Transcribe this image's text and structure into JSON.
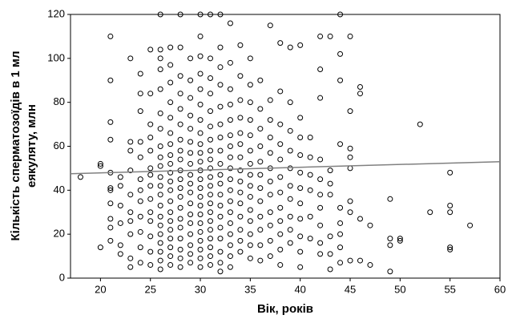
{
  "chart_data": {
    "type": "scatter",
    "ylabel": [
      "Кількість сперматозоїдів в 1 мл",
      "еякуляту, млн"
    ],
    "xlabel": "Вік, років",
    "xlim": [
      17,
      60
    ],
    "ylim": [
      0,
      120
    ],
    "xticks": [
      20,
      25,
      30,
      35,
      40,
      45,
      50,
      55,
      60
    ],
    "yticks": [
      0,
      20,
      40,
      60,
      80,
      100,
      120
    ],
    "color": "#000000",
    "trend": {
      "x": [
        17,
        60
      ],
      "y": [
        47.5,
        53
      ],
      "color": "#808080"
    },
    "x": [
      18,
      20,
      20,
      20,
      21,
      21,
      21,
      21,
      21,
      21,
      21,
      21,
      21,
      21,
      21,
      22,
      22,
      22,
      22,
      22,
      22,
      23,
      23,
      23,
      23,
      23,
      23,
      23,
      23,
      23,
      23,
      24,
      24,
      24,
      24,
      24,
      24,
      24,
      24,
      24,
      24,
      24,
      24,
      25,
      25,
      25,
      25,
      25,
      25,
      25,
      25,
      25,
      25,
      25,
      25,
      25,
      25,
      26,
      26,
      26,
      26,
      26,
      26,
      26,
      26,
      26,
      26,
      26,
      26,
      26,
      26,
      26,
      26,
      26,
      26,
      26,
      26,
      26,
      27,
      27,
      27,
      27,
      27,
      27,
      27,
      27,
      27,
      27,
      27,
      27,
      27,
      27,
      27,
      27,
      27,
      27,
      27,
      27,
      28,
      28,
      28,
      28,
      28,
      28,
      28,
      28,
      28,
      28,
      28,
      28,
      28,
      28,
      28,
      28,
      28,
      28,
      28,
      28,
      29,
      29,
      29,
      29,
      29,
      29,
      29,
      29,
      29,
      29,
      29,
      29,
      29,
      29,
      29,
      29,
      29,
      29,
      30,
      30,
      30,
      30,
      30,
      30,
      30,
      30,
      30,
      30,
      30,
      30,
      30,
      30,
      30,
      30,
      30,
      30,
      30,
      30,
      30,
      30,
      30,
      31,
      31,
      31,
      31,
      31,
      31,
      31,
      31,
      31,
      31,
      31,
      31,
      31,
      31,
      31,
      31,
      31,
      31,
      31,
      31,
      31,
      32,
      32,
      32,
      32,
      32,
      32,
      32,
      32,
      32,
      32,
      32,
      32,
      32,
      32,
      32,
      32,
      32,
      32,
      32,
      33,
      33,
      33,
      33,
      33,
      33,
      33,
      33,
      33,
      33,
      33,
      33,
      33,
      33,
      33,
      33,
      33,
      33,
      34,
      34,
      34,
      34,
      34,
      34,
      34,
      34,
      34,
      34,
      34,
      34,
      34,
      34,
      34,
      35,
      35,
      35,
      35,
      35,
      35,
      35,
      35,
      35,
      35,
      35,
      35,
      35,
      35,
      35,
      36,
      36,
      36,
      36,
      36,
      36,
      36,
      36,
      36,
      36,
      36,
      36,
      37,
      37,
      37,
      37,
      37,
      37,
      37,
      37,
      37,
      37,
      37,
      37,
      38,
      38,
      38,
      38,
      38,
      38,
      38,
      38,
      38,
      38,
      38,
      38,
      39,
      39,
      39,
      39,
      39,
      39,
      39,
      39,
      39,
      39,
      40,
      40,
      40,
      40,
      40,
      40,
      40,
      40,
      40,
      40,
      40,
      41,
      41,
      41,
      41,
      41,
      41,
      42,
      42,
      42,
      42,
      42,
      42,
      42,
      42,
      42,
      42,
      43,
      43,
      43,
      43,
      43,
      43,
      43,
      44,
      44,
      44,
      44,
      44,
      44,
      44,
      44,
      44,
      45,
      45,
      45,
      45,
      45,
      45,
      45,
      45,
      46,
      46,
      46,
      46,
      47,
      47,
      49,
      49,
      49,
      49,
      50,
      50,
      52,
      53,
      55,
      55,
      55,
      55,
      55,
      57
    ],
    "y": [
      46,
      14,
      51,
      52,
      110,
      90,
      71,
      63,
      48,
      41,
      40,
      34,
      27,
      23,
      17,
      46,
      42,
      33,
      25,
      15,
      11,
      100,
      62,
      58,
      49,
      38,
      30,
      26,
      20,
      9,
      5,
      93,
      84,
      76,
      62,
      55,
      45,
      40,
      35,
      28,
      21,
      14,
      7,
      104,
      84,
      70,
      64,
      58,
      50,
      47,
      42,
      36,
      30,
      26,
      19,
      12,
      6,
      120,
      104,
      100,
      95,
      86,
      75,
      68,
      60,
      55,
      51,
      46,
      42,
      38,
      33,
      28,
      24,
      20,
      16,
      12,
      8,
      4,
      105,
      97,
      89,
      80,
      73,
      66,
      61,
      56,
      52,
      48,
      44,
      40,
      35,
      30,
      26,
      22,
      18,
      14,
      10,
      6,
      120,
      105,
      92,
      84,
      77,
      70,
      63,
      58,
      54,
      49,
      45,
      41,
      37,
      32,
      27,
      23,
      18,
      13,
      9,
      5,
      100,
      90,
      82,
      74,
      68,
      62,
      57,
      52,
      47,
      43,
      39,
      34,
      29,
      25,
      20,
      15,
      11,
      7,
      120,
      110,
      101,
      93,
      86,
      79,
      72,
      66,
      61,
      57,
      53,
      49,
      45,
      41,
      37,
      33,
      29,
      25,
      21,
      17,
      13,
      9,
      5,
      120,
      100,
      91,
      84,
      76,
      69,
      63,
      58,
      54,
      50,
      46,
      42,
      38,
      34,
      30,
      26,
      22,
      18,
      14,
      10,
      6,
      120,
      105,
      96,
      88,
      78,
      70,
      64,
      58,
      52,
      47,
      43,
      38,
      33,
      28,
      23,
      18,
      12,
      7,
      3,
      116,
      98,
      86,
      79,
      72,
      65,
      60,
      55,
      50,
      45,
      40,
      35,
      30,
      25,
      20,
      15,
      10,
      5,
      106,
      92,
      81,
      73,
      66,
      61,
      55,
      49,
      44,
      39,
      34,
      28,
      22,
      17,
      12,
      100,
      88,
      80,
      72,
      65,
      58,
      52,
      47,
      42,
      37,
      31,
      26,
      20,
      15,
      9,
      90,
      77,
      68,
      60,
      53,
      47,
      41,
      35,
      28,
      22,
      15,
      8,
      115,
      81,
      72,
      64,
      57,
      50,
      44,
      38,
      30,
      24,
      17,
      10,
      107,
      85,
      70,
      61,
      54,
      46,
      39,
      32,
      26,
      20,
      13,
      6,
      105,
      80,
      67,
      58,
      50,
      42,
      36,
      28,
      22,
      16,
      106,
      73,
      64,
      56,
      48,
      41,
      34,
      27,
      19,
      12,
      5,
      64,
      55,
      47,
      40,
      28,
      18,
      110,
      95,
      82,
      54,
      45,
      38,
      32,
      24,
      16,
      11,
      110,
      49,
      43,
      38,
      19,
      11,
      4,
      120,
      102,
      90,
      61,
      32,
      25,
      20,
      14,
      7,
      110,
      76,
      59,
      55,
      50,
      35,
      30,
      8,
      87,
      84,
      27,
      8,
      24,
      6,
      36,
      18,
      15,
      3,
      18,
      17,
      70,
      30,
      48,
      33,
      30,
      14,
      13,
      24
    ]
  }
}
